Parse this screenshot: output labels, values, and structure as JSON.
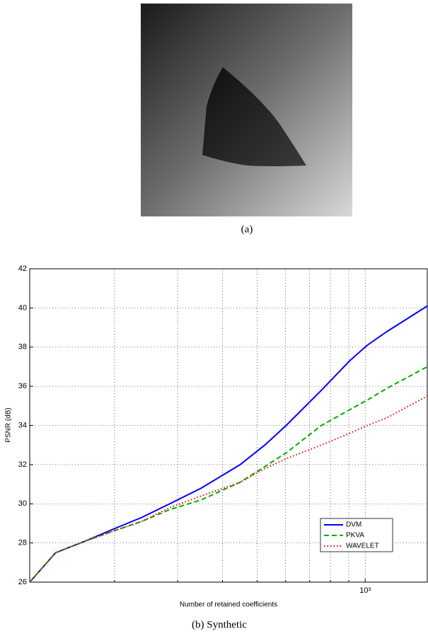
{
  "figure_a": {
    "caption": "(a)"
  },
  "chart_data": {
    "type": "line",
    "caption": "(b) Synthetic",
    "xlabel": "Number of retained coefficients",
    "ylabel": "PSNR (dB)",
    "log_x": true,
    "grid": true,
    "legend": "lower right",
    "x": [
      116,
      137,
      166,
      198,
      238,
      285,
      349,
      448,
      525,
      602,
      755,
      905,
      1014,
      1151,
      1490
    ],
    "series": [
      {
        "name": "DVM",
        "color": "#0000ff",
        "dash": "solid",
        "values": [
          26,
          27.5,
          28.1,
          28.7,
          29.3,
          30.0,
          30.8,
          32.0,
          33.0,
          34.0,
          35.8,
          37.3,
          38.1,
          38.8,
          40.1
        ]
      },
      {
        "name": "PKVA",
        "color": "#00b000",
        "dash": "dashed",
        "values": [
          26,
          27.5,
          28.1,
          28.6,
          29.1,
          29.7,
          30.2,
          31.1,
          31.9,
          32.6,
          34.0,
          34.8,
          35.3,
          35.9,
          37.0
        ]
      },
      {
        "name": "WAVELET",
        "color": "#ff0000",
        "dash": "dotted",
        "values": [
          26,
          27.5,
          28.1,
          28.6,
          29.1,
          29.8,
          30.4,
          31.1,
          31.8,
          32.3,
          33.0,
          33.6,
          34.0,
          34.4,
          35.5
        ]
      }
    ],
    "xlim": [
      116,
      1490
    ],
    "xticks": [
      {
        "value": 1000,
        "label": "10³"
      }
    ],
    "xminor_ticks": [
      200,
      300,
      400,
      500,
      600,
      700,
      800,
      900
    ],
    "ylim": [
      26,
      42
    ],
    "yticks": [
      26,
      28,
      30,
      32,
      34,
      36,
      38,
      40,
      42
    ]
  }
}
